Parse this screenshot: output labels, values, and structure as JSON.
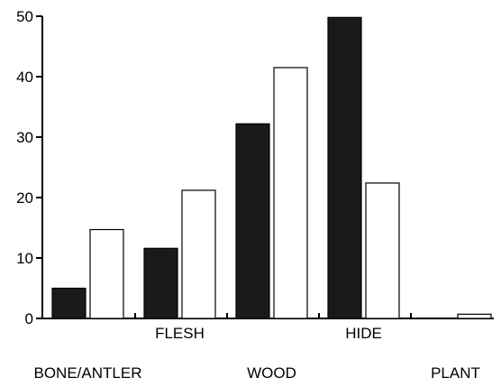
{
  "chart_data": {
    "type": "bar",
    "categories": [
      "BONE/ANTLER",
      "FLESH",
      "WOOD",
      "HIDE",
      "PLANT"
    ],
    "series": [
      {
        "values": [
          5,
          11.6,
          32.2,
          49.8,
          0
        ],
        "fill": "#1a1a1a"
      },
      {
        "values": [
          14.7,
          21.2,
          41.5,
          22.4,
          0.7
        ],
        "fill": "#ffffff"
      }
    ],
    "ylim": [
      0,
      50
    ],
    "yticks": [
      "0",
      "10",
      "20",
      "30",
      "40",
      "50"
    ],
    "grid": false,
    "legend": "none"
  }
}
